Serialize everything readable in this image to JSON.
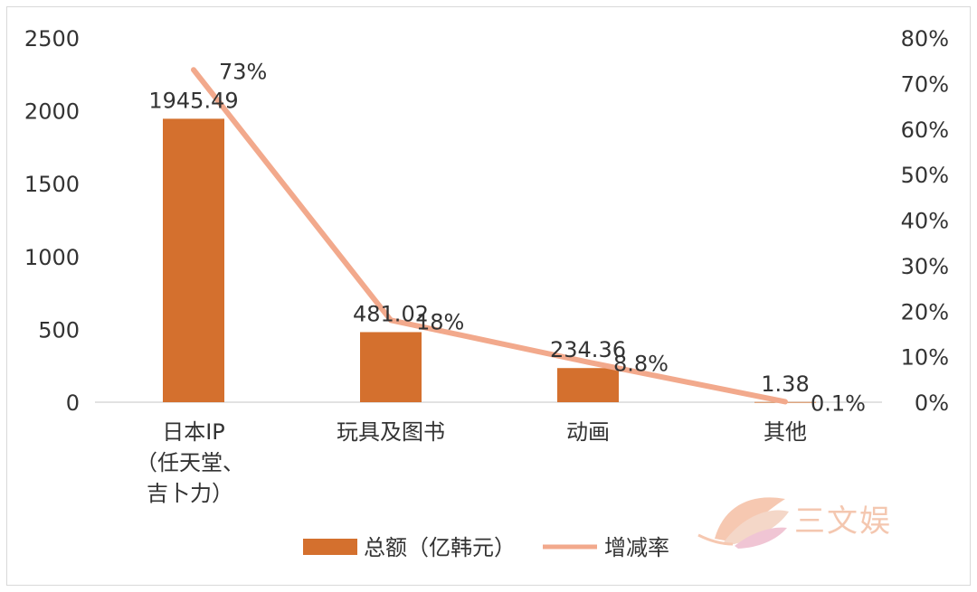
{
  "chart_data": {
    "type": "bar",
    "categories": [
      [
        "日本IP",
        "（任天堂、",
        "吉卜力）"
      ],
      [
        "玩具及图书"
      ],
      [
        "动画"
      ],
      [
        "其他"
      ]
    ],
    "series": [
      {
        "name": "总额（亿韩元）",
        "type": "bar",
        "axis": "left",
        "values": [
          1945.49,
          481.02,
          234.36,
          1.38
        ],
        "labels": [
          "1945.49",
          "481.02",
          "234.36",
          "1.38"
        ],
        "color": "#d4702e"
      },
      {
        "name": "增减率",
        "type": "line",
        "axis": "right",
        "values": [
          73,
          18,
          8.8,
          0.1
        ],
        "labels": [
          "73%",
          "18%",
          "8.8%",
          "0.1%"
        ],
        "color": "#f2a98c"
      }
    ],
    "y_left": {
      "min": 0,
      "max": 2500,
      "ticks": [
        "0",
        "500",
        "1000",
        "1500",
        "2000",
        "2500"
      ]
    },
    "y_right": {
      "min": 0,
      "max": 80,
      "ticks": [
        "0%",
        "10%",
        "20%",
        "30%",
        "40%",
        "50%",
        "60%",
        "70%",
        "80%"
      ]
    },
    "legend_position": "bottom",
    "grid": false
  },
  "watermark": {
    "text": "三文娱",
    "color": "#f3c2a8"
  }
}
